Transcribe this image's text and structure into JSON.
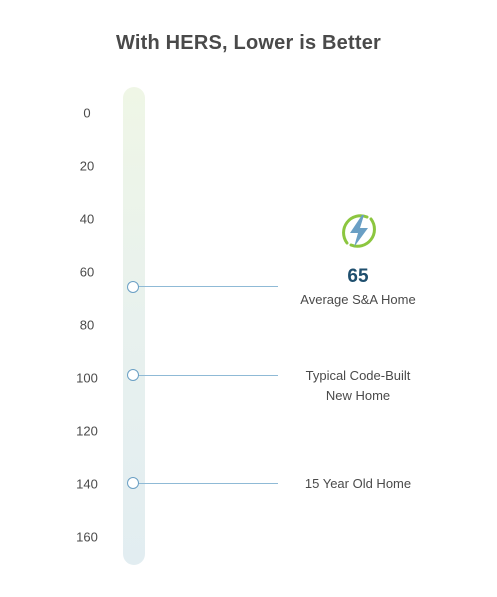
{
  "title": "With HERS, Lower is Better",
  "scale": {
    "ticks": [
      "0",
      "20",
      "40",
      "60",
      "80",
      "100",
      "120",
      "140",
      "160"
    ],
    "min": 0,
    "max": 160
  },
  "markers": [
    {
      "value": 65,
      "value_label": "65",
      "label": "Average S&A Home",
      "icon": "lightning-bolt-icon",
      "highlight": true
    },
    {
      "value": 98,
      "label_lines": [
        "Typical Code-Built",
        "New Home"
      ]
    },
    {
      "value": 140,
      "label": "15 Year Old Home"
    }
  ],
  "colors": {
    "title": "#4a4a4a",
    "value": "#1f4f6e",
    "line": "#8fbad6",
    "bolt": "#6a9fc4",
    "ring": "#8cc63f"
  }
}
